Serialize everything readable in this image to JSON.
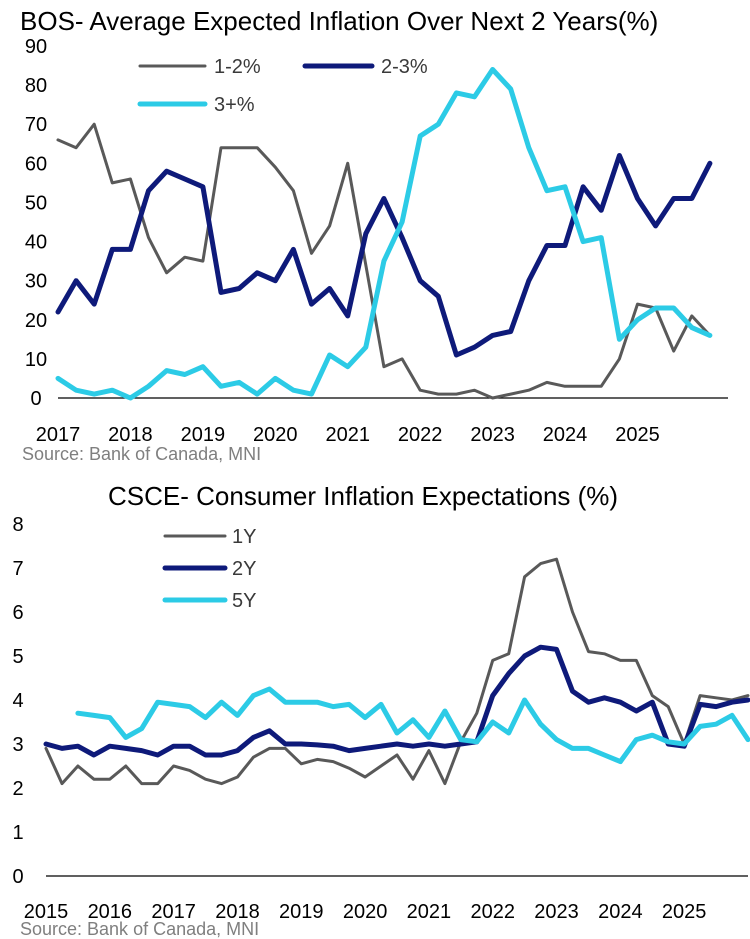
{
  "chart_data": [
    {
      "type": "line",
      "title": "BOS- Average Expected Inflation Over Next 2 Years(%)",
      "source": "Source:  Bank of Canada, MNI",
      "ylim": [
        0,
        90
      ],
      "yticks": [
        "90",
        "80",
        "70",
        "60",
        "50",
        "40",
        "30",
        "20",
        "10",
        "0"
      ],
      "xlim": [
        2017,
        2026.25
      ],
      "xticks": [
        "2017",
        "2018",
        "2019",
        "2020",
        "2021",
        "2022",
        "2023",
        "2024",
        "2025"
      ],
      "legend": [
        "1-2%",
        "2-3%",
        "3+%"
      ],
      "colors": [
        "#595959",
        "#0e1a7a",
        "#2ccbe6"
      ],
      "series": [
        {
          "name": "1-2%",
          "x": [
            2017.0,
            2017.25,
            2017.5,
            2017.75,
            2018.0,
            2018.25,
            2018.5,
            2018.75,
            2019.0,
            2019.25,
            2019.5,
            2019.75,
            2020.0,
            2020.25,
            2020.5,
            2020.75,
            2021.0,
            2021.25,
            2021.5,
            2021.75,
            2022.0,
            2022.25,
            2022.5,
            2022.75,
            2023.0,
            2023.25,
            2023.5,
            2023.75,
            2024.0,
            2024.25,
            2024.5,
            2024.75,
            2025.0,
            2025.25,
            2025.5,
            2025.75,
            2026.0
          ],
          "values": [
            66,
            64,
            70,
            55,
            56,
            41,
            32,
            36,
            35,
            64,
            64,
            64,
            59,
            53,
            37,
            44,
            60,
            34,
            8,
            10,
            2,
            1,
            1,
            2,
            0,
            1,
            2,
            4,
            3,
            3,
            3,
            10,
            24,
            23,
            12,
            21,
            16
          ]
        },
        {
          "name": "2-3%",
          "x": [
            2017.0,
            2017.25,
            2017.5,
            2017.75,
            2018.0,
            2018.25,
            2018.5,
            2018.75,
            2019.0,
            2019.25,
            2019.5,
            2019.75,
            2020.0,
            2020.25,
            2020.5,
            2020.75,
            2021.0,
            2021.25,
            2021.5,
            2021.75,
            2022.0,
            2022.25,
            2022.5,
            2022.75,
            2023.0,
            2023.25,
            2023.5,
            2023.75,
            2024.0,
            2024.25,
            2024.5,
            2024.75,
            2025.0,
            2025.25,
            2025.5,
            2025.75,
            2026.0
          ],
          "values": [
            22,
            30,
            24,
            38,
            38,
            53,
            58,
            56,
            54,
            27,
            28,
            32,
            30,
            38,
            24,
            28,
            21,
            42,
            51,
            41,
            30,
            26,
            11,
            13,
            16,
            17,
            30,
            39,
            39,
            54,
            48,
            62,
            51,
            44,
            51,
            51,
            60
          ]
        },
        {
          "name": "3+%",
          "x": [
            2017.0,
            2017.25,
            2017.5,
            2017.75,
            2018.0,
            2018.25,
            2018.5,
            2018.75,
            2019.0,
            2019.25,
            2019.5,
            2019.75,
            2020.0,
            2020.25,
            2020.5,
            2020.75,
            2021.0,
            2021.25,
            2021.5,
            2021.75,
            2022.0,
            2022.25,
            2022.5,
            2022.75,
            2023.0,
            2023.25,
            2023.5,
            2023.75,
            2024.0,
            2024.25,
            2024.5,
            2024.75,
            2025.0,
            2025.25,
            2025.5,
            2025.75,
            2026.0
          ],
          "values": [
            5,
            2,
            1,
            2,
            0,
            3,
            7,
            6,
            8,
            3,
            4,
            1,
            5,
            2,
            1,
            11,
            8,
            13,
            35,
            45,
            67,
            70,
            78,
            77,
            84,
            79,
            64,
            53,
            54,
            40,
            41,
            15,
            20,
            23,
            23,
            18,
            16
          ]
        }
      ]
    },
    {
      "type": "line",
      "title": "CSCE- Consumer Inflation Expectations (%)",
      "source": "Source:  Bank of Canada, MNI",
      "ylim": [
        0,
        8
      ],
      "yticks": [
        "8",
        "7",
        "6",
        "5",
        "4",
        "3",
        "2",
        "1",
        "0"
      ],
      "xlim": [
        2015,
        2026.0
      ],
      "xticks": [
        "2015",
        "2016",
        "2017",
        "2018",
        "2019",
        "2020",
        "2021",
        "2022",
        "2023",
        "2024",
        "2025"
      ],
      "legend": [
        "1Y",
        "2Y",
        "5Y"
      ],
      "colors": [
        "#595959",
        "#0e1a7a",
        "#2ccbe6"
      ],
      "series": [
        {
          "name": "1Y",
          "x": [
            2015.0,
            2015.25,
            2015.5,
            2015.75,
            2016.0,
            2016.25,
            2016.5,
            2016.75,
            2017.0,
            2017.25,
            2017.5,
            2017.75,
            2018.0,
            2018.25,
            2018.5,
            2018.75,
            2019.0,
            2019.25,
            2019.5,
            2019.75,
            2020.0,
            2020.25,
            2020.5,
            2020.75,
            2021.0,
            2021.25,
            2021.5,
            2021.75,
            2022.0,
            2022.25,
            2022.5,
            2022.75,
            2023.0,
            2023.25,
            2023.5,
            2023.75,
            2024.0,
            2024.25,
            2024.5,
            2024.75,
            2025.0,
            2025.25,
            2025.5,
            2025.75,
            2026.0
          ],
          "values": [
            2.9,
            2.1,
            2.5,
            2.2,
            2.2,
            2.5,
            2.1,
            2.1,
            2.5,
            2.4,
            2.2,
            2.1,
            2.25,
            2.7,
            2.9,
            2.9,
            2.55,
            2.65,
            2.6,
            2.45,
            2.25,
            2.5,
            2.75,
            2.2,
            2.85,
            2.1,
            3.05,
            3.7,
            4.9,
            5.05,
            6.8,
            7.1,
            7.2,
            6.0,
            5.1,
            5.05,
            4.9,
            4.9,
            4.1,
            3.85,
            3.0,
            4.1,
            4.05,
            4.0,
            4.1
          ]
        },
        {
          "name": "2Y",
          "x": [
            2015.0,
            2015.25,
            2015.5,
            2015.75,
            2016.0,
            2016.25,
            2016.5,
            2016.75,
            2017.0,
            2017.25,
            2017.5,
            2017.75,
            2018.0,
            2018.25,
            2018.5,
            2018.75,
            2019.0,
            2019.25,
            2019.5,
            2019.75,
            2020.0,
            2020.25,
            2020.5,
            2020.75,
            2021.0,
            2021.25,
            2021.5,
            2021.75,
            2022.0,
            2022.25,
            2022.5,
            2022.75,
            2023.0,
            2023.25,
            2023.5,
            2023.75,
            2024.0,
            2024.25,
            2024.5,
            2024.75,
            2025.0,
            2025.25,
            2025.5,
            2025.75,
            2026.0
          ],
          "values": [
            3.0,
            2.9,
            2.95,
            2.75,
            2.95,
            2.9,
            2.85,
            2.75,
            2.95,
            2.95,
            2.75,
            2.75,
            2.85,
            3.15,
            3.3,
            3.0,
            3.0,
            2.98,
            2.95,
            2.85,
            2.9,
            2.95,
            3.0,
            2.95,
            3.0,
            2.95,
            3.0,
            3.05,
            4.1,
            4.6,
            5.0,
            5.2,
            5.15,
            4.2,
            3.95,
            4.05,
            3.95,
            3.75,
            3.95,
            3.0,
            2.95,
            3.9,
            3.85,
            3.95,
            4.0
          ]
        },
        {
          "name": "5Y",
          "x": [
            2015.5,
            2015.75,
            2016.0,
            2016.25,
            2016.5,
            2016.75,
            2017.0,
            2017.25,
            2017.5,
            2017.75,
            2018.0,
            2018.25,
            2018.5,
            2018.75,
            2019.0,
            2019.25,
            2019.5,
            2019.75,
            2020.0,
            2020.25,
            2020.5,
            2020.75,
            2021.0,
            2021.25,
            2021.5,
            2021.75,
            2022.0,
            2022.25,
            2022.5,
            2022.75,
            2023.0,
            2023.25,
            2023.5,
            2023.75,
            2024.0,
            2024.25,
            2024.5,
            2024.75,
            2025.0,
            2025.25,
            2025.5,
            2025.75,
            2026.0
          ],
          "values": [
            3.7,
            3.65,
            3.6,
            3.15,
            3.35,
            3.95,
            3.9,
            3.85,
            3.6,
            3.95,
            3.65,
            4.1,
            4.25,
            3.95,
            3.95,
            3.95,
            3.85,
            3.9,
            3.6,
            3.9,
            3.25,
            3.55,
            3.15,
            3.75,
            3.1,
            3.05,
            3.5,
            3.25,
            4.0,
            3.45,
            3.1,
            2.9,
            2.9,
            2.75,
            2.6,
            3.1,
            3.2,
            3.05,
            3.0,
            3.4,
            3.45,
            3.65,
            3.1
          ]
        }
      ]
    }
  ]
}
